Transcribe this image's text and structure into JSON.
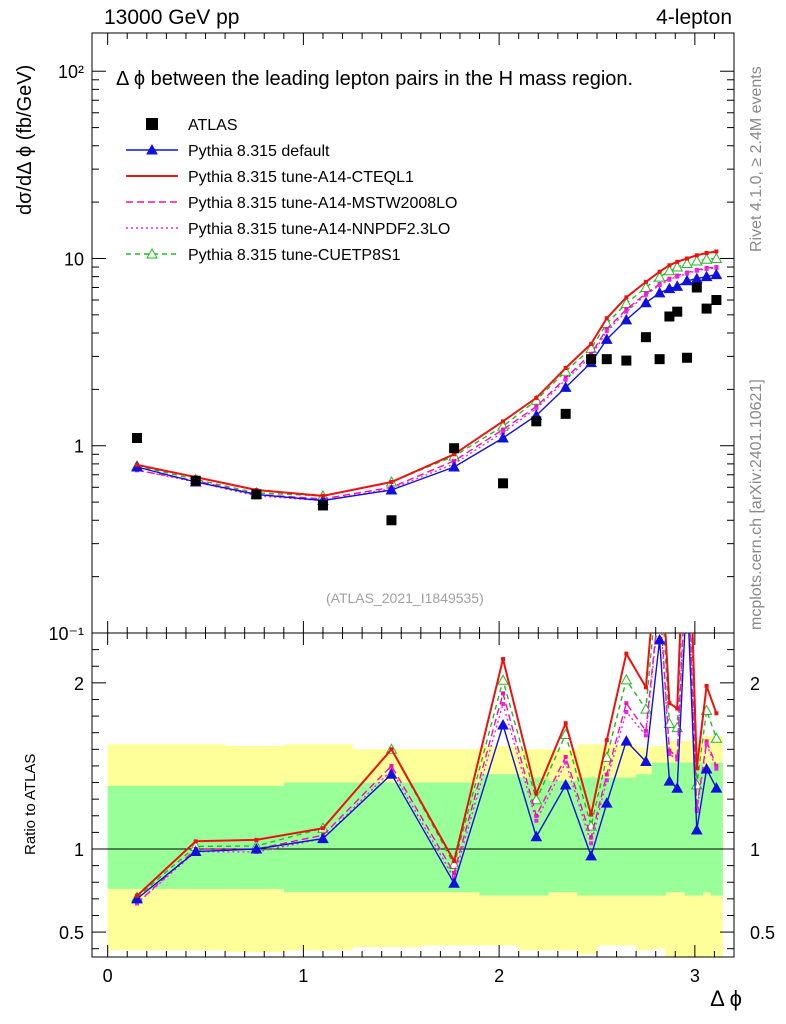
{
  "header": {
    "energy": "13000 GeV pp",
    "process": "4-lepton"
  },
  "side_labels": {
    "rivet": "Rivet 4.1.0, ≥ 2.4M events",
    "source": "mcplots.cern.ch [arXiv:2401.10621]"
  },
  "chart_data": {
    "type": "scatter",
    "title": "Δ ϕ between the leading lepton pairs in the H mass region.",
    "analysis_id": "(ATLAS_2021_I1849535)",
    "xlabel": "Δ ϕ",
    "ylabel": "dσ/dΔ ϕ (fb/GeV)",
    "ratio_ylabel": "Ratio to ATLAS",
    "xlim": [
      -0.08,
      3.2
    ],
    "ylim": [
      0.1,
      160
    ],
    "ylog": true,
    "ratio_ylim": [
      0.35,
      2.3
    ],
    "x_ticks": [
      {
        "v": 0,
        "label": "0"
      },
      {
        "v": 1,
        "label": "1"
      },
      {
        "v": 2,
        "label": "2"
      },
      {
        "v": 3,
        "label": "3"
      }
    ],
    "y_ticks": [
      {
        "v": 100,
        "label": "10²"
      },
      {
        "v": 10,
        "label": "10"
      },
      {
        "v": 1,
        "label": "1"
      },
      {
        "v": 0.1,
        "label": "10⁻¹"
      }
    ],
    "ratio_ticks": [
      {
        "v": 2,
        "label": "2"
      },
      {
        "v": 1,
        "label": "1"
      },
      {
        "v": 0.5,
        "label": "0.5"
      }
    ],
    "bin_edges": [
      0,
      0.3,
      0.6,
      0.9,
      1.25,
      1.6,
      1.9,
      2.1,
      2.25,
      2.4,
      2.5,
      2.6,
      2.7,
      2.78,
      2.85,
      2.88,
      2.95,
      2.98,
      3.04,
      3.08,
      3.14
    ],
    "x": [
      0.15,
      0.45,
      0.76,
      1.1,
      1.45,
      1.77,
      2.02,
      2.19,
      2.34,
      2.47,
      2.55,
      2.65,
      2.75,
      2.82,
      2.87,
      2.91,
      2.96,
      3.01,
      3.06,
      3.11
    ],
    "data": {
      "name": "ATLAS",
      "color": "#000000",
      "values": [
        1.1,
        0.65,
        0.55,
        0.48,
        0.4,
        0.97,
        0.63,
        1.35,
        1.48,
        2.9,
        2.9,
        2.85,
        3.8,
        2.9,
        4.9,
        5.2,
        2.95,
        7.0,
        5.4,
        6.0
      ]
    },
    "band_inner": [
      [
        0.76,
        1.38
      ],
      [
        0.76,
        1.38
      ],
      [
        0.76,
        1.38
      ],
      [
        0.74,
        1.4
      ],
      [
        0.74,
        1.4
      ],
      [
        0.74,
        1.4
      ],
      [
        0.72,
        1.45
      ],
      [
        0.72,
        1.43
      ],
      [
        0.74,
        1.41
      ],
      [
        0.72,
        1.43
      ],
      [
        0.72,
        1.43
      ],
      [
        0.72,
        1.43
      ],
      [
        0.72,
        1.45
      ],
      [
        0.72,
        1.52
      ],
      [
        0.74,
        1.52
      ],
      [
        0.74,
        1.52
      ],
      [
        0.72,
        1.52
      ],
      [
        0.72,
        1.52
      ],
      [
        0.74,
        1.49
      ],
      [
        0.72,
        1.52
      ]
    ],
    "band_outer": [
      [
        0.39,
        1.63
      ],
      [
        0.39,
        1.63
      ],
      [
        0.38,
        1.62
      ],
      [
        0.39,
        1.63
      ],
      [
        0.41,
        1.6
      ],
      [
        0.42,
        1.6
      ],
      [
        0.42,
        1.62
      ],
      [
        0.39,
        1.6
      ],
      [
        0.39,
        1.6
      ],
      [
        0.37,
        1.63
      ],
      [
        0.42,
        1.63
      ],
      [
        0.42,
        1.63
      ],
      [
        0.39,
        1.61
      ],
      [
        0.4,
        1.62
      ],
      [
        0.35,
        1.65
      ],
      [
        0.35,
        1.65
      ],
      [
        0.35,
        1.65
      ],
      [
        0.35,
        1.65
      ],
      [
        0.35,
        1.68
      ],
      [
        0.35,
        1.68
      ]
    ],
    "series": [
      {
        "name": "Pythia 8.315 default",
        "color": "#1111dd",
        "dash": "",
        "marker": "triangle-filled",
        "values": [
          0.77,
          0.64,
          0.55,
          0.51,
          0.58,
          0.77,
          1.1,
          1.45,
          2.05,
          2.78,
          3.7,
          4.7,
          5.8,
          6.55,
          6.9,
          7.1,
          7.6,
          7.8,
          8.0,
          8.2
        ]
      },
      {
        "name": "Pythia 8.315 tune-A14-CTEQL1",
        "color": "#ee1111",
        "dash": "",
        "marker": "none",
        "values": [
          0.79,
          0.68,
          0.58,
          0.54,
          0.64,
          0.9,
          1.35,
          1.8,
          2.6,
          3.5,
          4.8,
          6.2,
          7.5,
          8.5,
          9.2,
          9.6,
          10.0,
          10.4,
          10.7,
          10.9
        ]
      },
      {
        "name": "Pythia 8.315 tune-A14-MSTW2008LO",
        "color": "#ee11aa",
        "dash": "7,4",
        "marker": "none",
        "values": [
          0.74,
          0.65,
          0.55,
          0.52,
          0.6,
          0.83,
          1.22,
          1.62,
          2.3,
          3.1,
          4.2,
          5.35,
          6.5,
          7.3,
          7.8,
          8.1,
          8.4,
          8.7,
          8.9,
          9.0
        ]
      },
      {
        "name": "Pythia 8.315 tune-A14-NNPDF2.3LO",
        "color": "#ee22ee",
        "dash": "2,3",
        "marker": "none",
        "values": [
          0.74,
          0.64,
          0.54,
          0.51,
          0.59,
          0.8,
          1.18,
          1.58,
          2.25,
          3.0,
          4.1,
          5.2,
          6.4,
          7.2,
          7.7,
          8.0,
          8.3,
          8.6,
          8.8,
          8.9
        ]
      },
      {
        "name": "Pythia 8.315 tune-CUETP8S1",
        "color": "#22bb22",
        "dash": "5,4",
        "marker": "triangle-open",
        "values": [
          0.78,
          0.66,
          0.56,
          0.54,
          0.64,
          0.88,
          1.27,
          1.75,
          2.5,
          3.3,
          4.5,
          5.75,
          7.0,
          7.95,
          8.6,
          9.0,
          9.4,
          9.7,
          9.9,
          10.0
        ]
      }
    ]
  }
}
